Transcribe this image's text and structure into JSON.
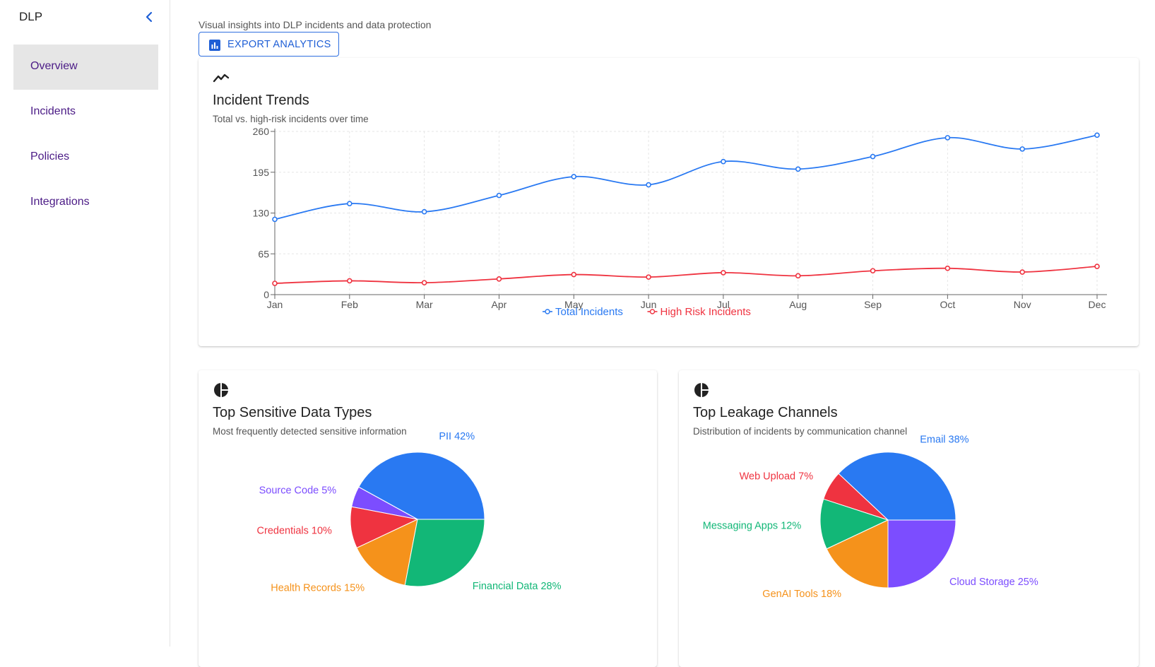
{
  "sidebar": {
    "title": "DLP",
    "items": [
      {
        "label": "Overview",
        "active": true
      },
      {
        "label": "Incidents",
        "active": false
      },
      {
        "label": "Policies",
        "active": false
      },
      {
        "label": "Integrations",
        "active": false
      }
    ]
  },
  "header": {
    "subtitle": "Visual insights into DLP incidents and data protection",
    "export_label": "EXPORT ANALYTICS"
  },
  "colors": {
    "accent": "#2f6fe0",
    "nav_text": "#4b1b86",
    "blue": "#2979f2",
    "red": "#ef3340",
    "green": "#12b777",
    "orange": "#f5921b",
    "purple": "#7c4dff"
  },
  "trend": {
    "icon": "trending-line-icon",
    "title": "Incident Trends",
    "subtitle": "Total vs. high-risk incidents over time"
  },
  "types": {
    "icon": "pie-chart-icon",
    "title": "Top Sensitive Data Types",
    "subtitle": "Most frequently detected sensitive information"
  },
  "channels": {
    "icon": "pie-chart-icon",
    "title": "Top Leakage Channels",
    "subtitle": "Distribution of incidents by communication channel"
  },
  "chart_data": [
    {
      "type": "line",
      "title": "Incident Trends",
      "x": [
        "Jan",
        "Feb",
        "Mar",
        "Apr",
        "May",
        "Jun",
        "Jul",
        "Aug",
        "Sep",
        "Oct",
        "Nov",
        "Dec"
      ],
      "ylim": [
        0,
        260
      ],
      "yticks": [
        0,
        65,
        130,
        195,
        260
      ],
      "grid": true,
      "legend": "bottom",
      "series": [
        {
          "name": "Total Incidents",
          "color": "#2979f2",
          "values": [
            120,
            145,
            132,
            158,
            188,
            175,
            212,
            200,
            220,
            250,
            232,
            254
          ]
        },
        {
          "name": "High Risk Incidents",
          "color": "#ef3340",
          "values": [
            18,
            22,
            19,
            25,
            32,
            28,
            35,
            30,
            38,
            42,
            36,
            45
          ]
        }
      ]
    },
    {
      "type": "pie",
      "title": "Top Sensitive Data Types",
      "slices": [
        {
          "label": "PII",
          "value": 42,
          "color": "#2979f2"
        },
        {
          "label": "Source Code",
          "value": 5,
          "color": "#7c4dff"
        },
        {
          "label": "Credentials",
          "value": 10,
          "color": "#ef3340"
        },
        {
          "label": "Health Records",
          "value": 15,
          "color": "#f5921b"
        },
        {
          "label": "Financial Data",
          "value": 28,
          "color": "#12b777"
        }
      ]
    },
    {
      "type": "pie",
      "title": "Top Leakage Channels",
      "slices": [
        {
          "label": "Email",
          "value": 38,
          "color": "#2979f2"
        },
        {
          "label": "Web Upload",
          "value": 7,
          "color": "#ef3340"
        },
        {
          "label": "Messaging Apps",
          "value": 12,
          "color": "#12b777"
        },
        {
          "label": "GenAI Tools",
          "value": 18,
          "color": "#f5921b"
        },
        {
          "label": "Cloud Storage",
          "value": 25,
          "color": "#7c4dff"
        }
      ]
    }
  ]
}
